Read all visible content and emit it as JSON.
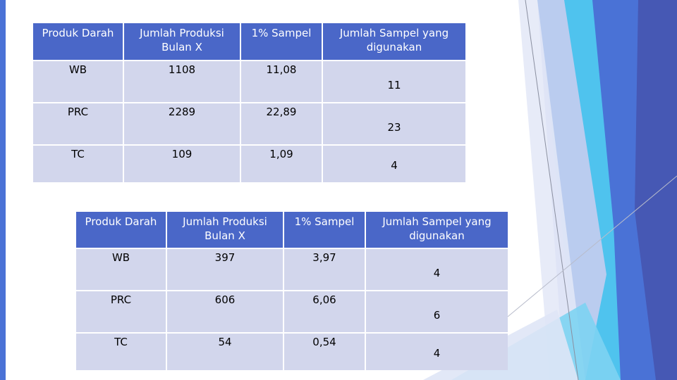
{
  "colors": {
    "header_bg": "#4a67c8",
    "cell_bg": "#d2d6ec",
    "accent_blue": "#4a72d6",
    "accent_cyan": "#4fc3ee",
    "accent_navy": "#4658b4",
    "accent_light": "#c5cdee"
  },
  "table1": {
    "headers": [
      "Produk Darah",
      "Jumlah Produksi Bulan X",
      "1% Sampel",
      "Jumlah Sampel yang digunakan"
    ],
    "rows": [
      [
        "WB",
        "1108",
        "11,08",
        "11"
      ],
      [
        "PRC",
        "2289",
        "22,89",
        "23"
      ],
      [
        "TC",
        "109",
        "1,09",
        "4"
      ]
    ]
  },
  "table2": {
    "headers": [
      "Produk Darah",
      "Jumlah Produksi Bulan X",
      "1% Sampel",
      "Jumlah Sampel yang digunakan"
    ],
    "rows": [
      [
        "WB",
        "397",
        "3,97",
        "4"
      ],
      [
        "PRC",
        "606",
        "6,06",
        "6"
      ],
      [
        "TC",
        "54",
        "0,54",
        "4"
      ]
    ]
  }
}
